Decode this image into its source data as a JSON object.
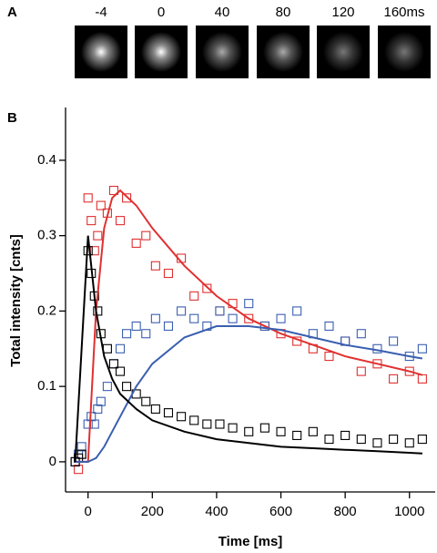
{
  "panel_a": {
    "label": "A",
    "frames": [
      "-4",
      "0",
      "40",
      "80",
      "120",
      "160ms"
    ]
  },
  "chart_data": {
    "type": "scatter",
    "panel_label": "B",
    "x_label": "Time [ms]",
    "y_label": "Total intensity [cnts]",
    "xlim": [
      -70,
      1080
    ],
    "ylim": [
      -0.04,
      0.47
    ],
    "xticks": [
      0,
      200,
      400,
      600,
      800,
      1000
    ],
    "yticks": [
      0,
      0.1,
      0.2,
      0.3,
      0.4
    ],
    "series": [
      {
        "kind": "scatter",
        "color": "#e03030",
        "x": [
          -40,
          -30,
          -20,
          0,
          10,
          20,
          30,
          40,
          60,
          80,
          100,
          120,
          150,
          180,
          210,
          250,
          290,
          330,
          370,
          410,
          450,
          500,
          550,
          600,
          650,
          700,
          750,
          800,
          850,
          900,
          950,
          1000,
          1040
        ],
        "values": [
          0,
          -0.01,
          0.01,
          0.35,
          0.32,
          0.28,
          0.3,
          0.34,
          0.33,
          0.36,
          0.32,
          0.35,
          0.29,
          0.3,
          0.26,
          0.25,
          0.27,
          0.22,
          0.23,
          0.2,
          0.21,
          0.19,
          0.18,
          0.17,
          0.16,
          0.15,
          0.14,
          0.16,
          0.12,
          0.13,
          0.11,
          0.12,
          0.11
        ]
      },
      {
        "kind": "scatter",
        "color": "#3a5fb0",
        "x": [
          -40,
          -30,
          -20,
          0,
          10,
          20,
          30,
          40,
          60,
          80,
          100,
          120,
          150,
          180,
          210,
          250,
          290,
          330,
          370,
          410,
          450,
          500,
          550,
          600,
          650,
          700,
          750,
          800,
          850,
          900,
          950,
          1000,
          1040
        ],
        "values": [
          0,
          0.01,
          0.02,
          0.05,
          0.06,
          0.05,
          0.07,
          0.08,
          0.1,
          0.13,
          0.15,
          0.17,
          0.18,
          0.17,
          0.19,
          0.18,
          0.2,
          0.19,
          0.18,
          0.2,
          0.19,
          0.21,
          0.18,
          0.19,
          0.2,
          0.17,
          0.18,
          0.16,
          0.17,
          0.15,
          0.16,
          0.14,
          0.15
        ]
      },
      {
        "kind": "scatter",
        "color": "#000000",
        "x": [
          -40,
          -30,
          -20,
          0,
          10,
          20,
          30,
          40,
          60,
          80,
          100,
          120,
          150,
          180,
          210,
          250,
          290,
          330,
          370,
          410,
          450,
          500,
          550,
          600,
          650,
          700,
          750,
          800,
          850,
          900,
          950,
          1000,
          1040
        ],
        "values": [
          0,
          0.005,
          0.01,
          0.28,
          0.25,
          0.22,
          0.2,
          0.17,
          0.15,
          0.13,
          0.12,
          0.1,
          0.09,
          0.08,
          0.07,
          0.065,
          0.06,
          0.055,
          0.05,
          0.05,
          0.045,
          0.04,
          0.045,
          0.04,
          0.035,
          0.04,
          0.03,
          0.035,
          0.03,
          0.025,
          0.03,
          0.025,
          0.03
        ]
      },
      {
        "kind": "line",
        "color": "#e03030",
        "x": [
          -40,
          0,
          25,
          50,
          75,
          100,
          150,
          200,
          300,
          400,
          500,
          600,
          700,
          800,
          900,
          1000,
          1040
        ],
        "values": [
          0,
          0,
          0.2,
          0.31,
          0.35,
          0.36,
          0.34,
          0.31,
          0.26,
          0.22,
          0.19,
          0.17,
          0.155,
          0.14,
          0.13,
          0.12,
          0.115
        ]
      },
      {
        "kind": "line",
        "color": "#3a5fb0",
        "x": [
          -40,
          0,
          25,
          50,
          75,
          100,
          150,
          200,
          300,
          400,
          500,
          600,
          700,
          800,
          900,
          1000,
          1040
        ],
        "values": [
          0,
          0,
          0.005,
          0.02,
          0.04,
          0.06,
          0.1,
          0.13,
          0.165,
          0.18,
          0.18,
          0.175,
          0.165,
          0.155,
          0.148,
          0.14,
          0.137
        ]
      },
      {
        "kind": "line",
        "color": "#000000",
        "x": [
          -40,
          0,
          25,
          50,
          75,
          100,
          150,
          200,
          300,
          400,
          500,
          600,
          700,
          800,
          900,
          1000,
          1040
        ],
        "values": [
          0,
          0.3,
          0.2,
          0.14,
          0.11,
          0.09,
          0.07,
          0.055,
          0.04,
          0.03,
          0.025,
          0.02,
          0.018,
          0.016,
          0.014,
          0.012,
          0.011
        ]
      }
    ]
  }
}
